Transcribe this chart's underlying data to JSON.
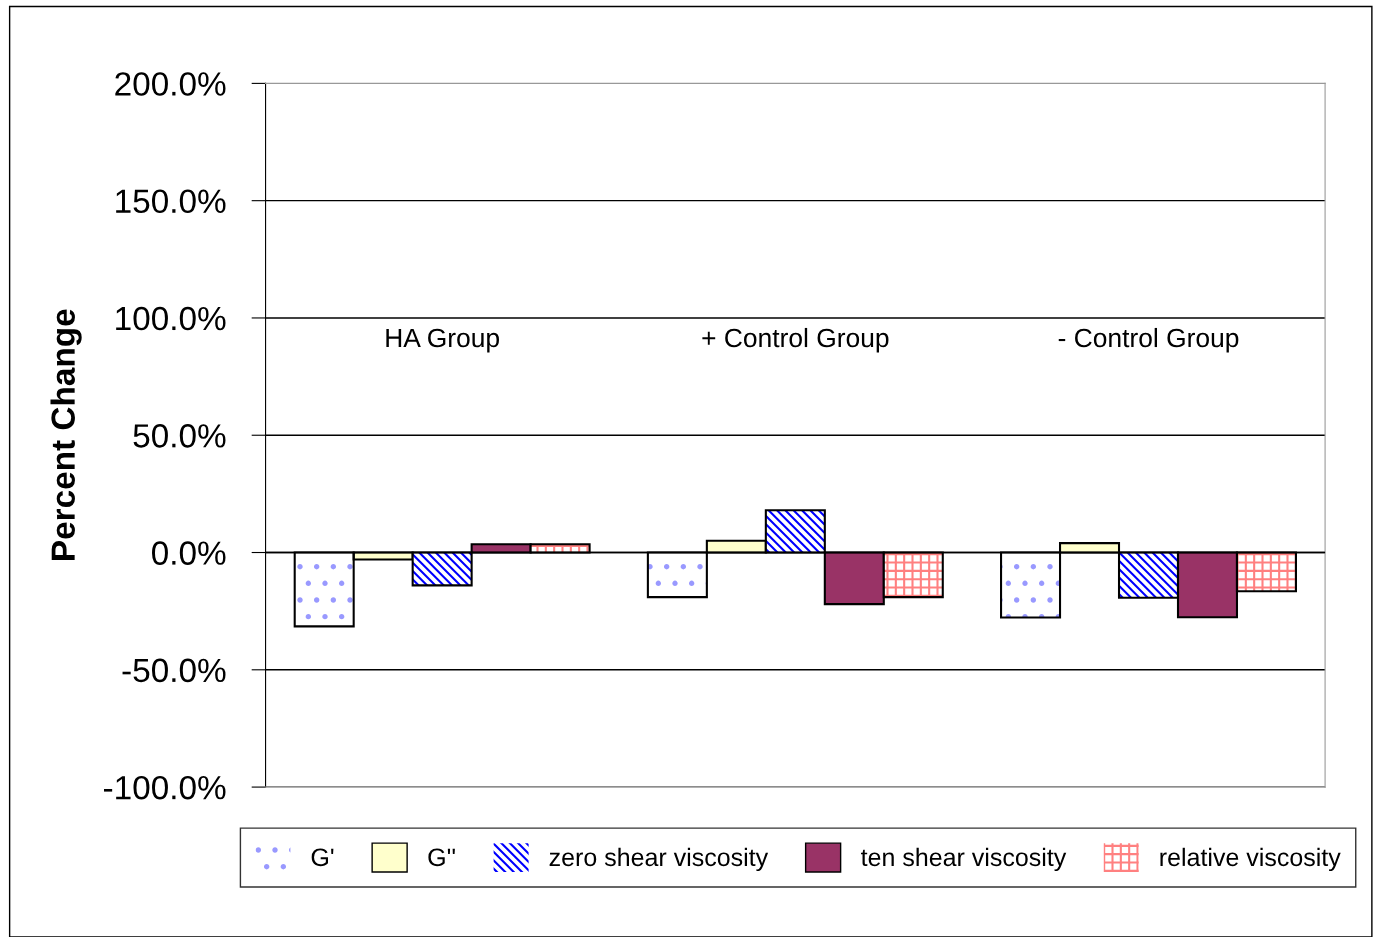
{
  "chart_data": {
    "type": "bar",
    "ylabel": "Percent Change",
    "categories": [
      "HA Group",
      "+ Control Group",
      "- Control Group"
    ],
    "series": [
      {
        "name": "G'",
        "color": "#9999ff",
        "values": [
          -31.5,
          -19,
          -27.7
        ]
      },
      {
        "name": "G''",
        "color": "#ffffcc",
        "values": [
          -3,
          5,
          4
        ]
      },
      {
        "name": "zero shear viscosity",
        "color": "#0000ff",
        "values": [
          -14,
          18,
          -19.3
        ]
      },
      {
        "name": "ten shear viscosity",
        "color": "#993366",
        "values": [
          3.5,
          -22,
          -27.6
        ]
      },
      {
        "name": "relative viscosity",
        "color": "#ff8080",
        "values": [
          3.5,
          -19,
          -16.5
        ]
      }
    ],
    "ylim": [
      -100,
      200
    ],
    "yticks": [
      {
        "value": -100,
        "label": "-100.0%"
      },
      {
        "value": -50,
        "label": "-50.0%"
      },
      {
        "value": 0,
        "label": "0.0%"
      },
      {
        "value": 50,
        "label": "50.0%"
      },
      {
        "value": 100,
        "label": "100.0%"
      },
      {
        "value": 150,
        "label": "150.0%"
      },
      {
        "value": 200,
        "label": "200.0%"
      }
    ],
    "grid": "y",
    "legend": "bottom"
  }
}
